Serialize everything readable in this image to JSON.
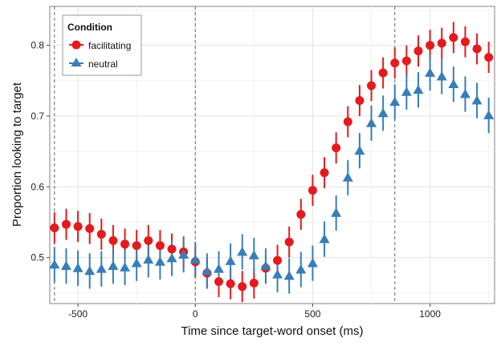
{
  "chart_data": {
    "type": "scatter",
    "title": "",
    "xlabel": "Time since target-word onset (ms)",
    "ylabel": "Proportion looking to target",
    "xlim": [
      -620,
      1275
    ],
    "ylim": [
      0.435,
      0.855
    ],
    "xticks": [
      -500,
      0,
      500,
      1000
    ],
    "xtick_labels": [
      "-500",
      "0",
      "500",
      "1000"
    ],
    "yticks": [
      0.5,
      0.6,
      0.7,
      0.8
    ],
    "ytick_labels": [
      "0.5",
      "0.6",
      "0.7",
      "0.8"
    ],
    "grid": true,
    "reference_lines_x": [
      -600,
      0,
      850
    ],
    "legend": {
      "title": "Condition",
      "placement": "top-left"
    },
    "x": [
      -600,
      -550,
      -500,
      -450,
      -400,
      -350,
      -300,
      -250,
      -200,
      -150,
      -100,
      -50,
      0,
      50,
      100,
      150,
      200,
      250,
      300,
      350,
      400,
      450,
      500,
      550,
      600,
      650,
      700,
      750,
      800,
      850,
      900,
      950,
      1000,
      1050,
      1100,
      1150,
      1200,
      1250
    ],
    "series": [
      {
        "name": "facilitating",
        "color": "#E41A1C",
        "marker": "circle",
        "y": [
          0.542,
          0.547,
          0.544,
          0.541,
          0.533,
          0.524,
          0.519,
          0.517,
          0.524,
          0.517,
          0.512,
          0.508,
          0.494,
          0.478,
          0.466,
          0.463,
          0.459,
          0.464,
          0.485,
          0.496,
          0.522,
          0.561,
          0.595,
          0.62,
          0.655,
          0.692,
          0.722,
          0.743,
          0.761,
          0.775,
          0.778,
          0.792,
          0.8,
          0.803,
          0.811,
          0.805,
          0.795,
          0.783
        ],
        "lo": [
          0.52,
          0.525,
          0.522,
          0.519,
          0.511,
          0.502,
          0.497,
          0.495,
          0.502,
          0.495,
          0.49,
          0.486,
          0.472,
          0.456,
          0.444,
          0.441,
          0.437,
          0.442,
          0.463,
          0.474,
          0.5,
          0.539,
          0.573,
          0.598,
          0.633,
          0.67,
          0.7,
          0.721,
          0.739,
          0.753,
          0.756,
          0.77,
          0.778,
          0.781,
          0.789,
          0.783,
          0.773,
          0.761
        ],
        "hi": [
          0.564,
          0.569,
          0.566,
          0.563,
          0.555,
          0.546,
          0.541,
          0.539,
          0.546,
          0.539,
          0.534,
          0.53,
          0.516,
          0.5,
          0.488,
          0.485,
          0.481,
          0.486,
          0.507,
          0.518,
          0.544,
          0.583,
          0.617,
          0.642,
          0.677,
          0.714,
          0.744,
          0.765,
          0.783,
          0.797,
          0.8,
          0.814,
          0.822,
          0.825,
          0.833,
          0.827,
          0.817,
          0.805
        ]
      },
      {
        "name": "neutral",
        "color": "#377EB8",
        "marker": "triangle",
        "y": [
          0.49,
          0.488,
          0.485,
          0.481,
          0.484,
          0.488,
          0.486,
          0.492,
          0.497,
          0.494,
          0.499,
          0.504,
          0.497,
          0.481,
          0.484,
          0.495,
          0.508,
          0.503,
          0.488,
          0.476,
          0.474,
          0.483,
          0.492,
          0.526,
          0.563,
          0.613,
          0.651,
          0.69,
          0.704,
          0.72,
          0.734,
          0.737,
          0.761,
          0.756,
          0.745,
          0.731,
          0.722,
          0.701
        ],
        "lo": [
          0.465,
          0.463,
          0.46,
          0.456,
          0.459,
          0.463,
          0.461,
          0.467,
          0.472,
          0.469,
          0.474,
          0.479,
          0.472,
          0.456,
          0.459,
          0.47,
          0.483,
          0.478,
          0.463,
          0.451,
          0.449,
          0.458,
          0.467,
          0.501,
          0.538,
          0.588,
          0.626,
          0.665,
          0.679,
          0.695,
          0.709,
          0.712,
          0.736,
          0.731,
          0.72,
          0.706,
          0.697,
          0.676
        ],
        "hi": [
          0.515,
          0.513,
          0.51,
          0.506,
          0.509,
          0.513,
          0.511,
          0.517,
          0.522,
          0.519,
          0.524,
          0.529,
          0.522,
          0.506,
          0.509,
          0.52,
          0.533,
          0.528,
          0.513,
          0.501,
          0.499,
          0.508,
          0.517,
          0.551,
          0.588,
          0.638,
          0.676,
          0.715,
          0.729,
          0.745,
          0.759,
          0.762,
          0.786,
          0.781,
          0.77,
          0.756,
          0.747,
          0.726
        ]
      }
    ]
  }
}
